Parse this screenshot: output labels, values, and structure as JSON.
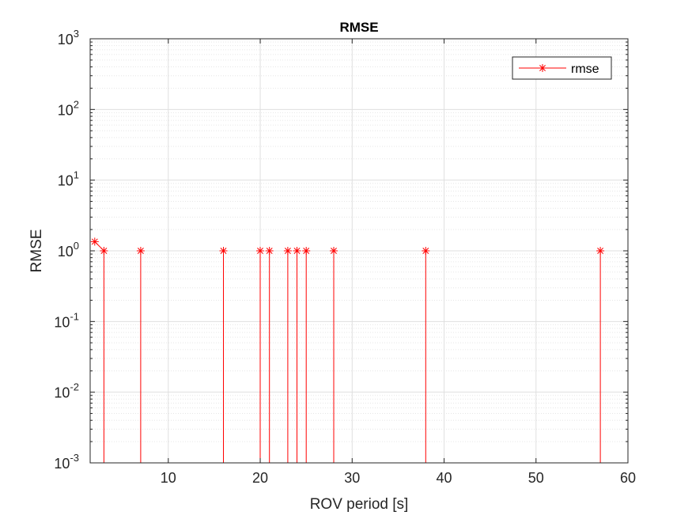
{
  "chart_data": {
    "type": "line",
    "title": "RMSE",
    "xlabel": "ROV period [s]",
    "ylabel": "RMSE",
    "yscale": "log",
    "xlim": [
      1.5,
      60
    ],
    "ylim": [
      0.001,
      1000
    ],
    "xticks": [
      10,
      20,
      30,
      40,
      50,
      60
    ],
    "xtick_labels": [
      "10",
      "20",
      "30",
      "40",
      "50",
      "60"
    ],
    "yticks": [
      0.001,
      0.01,
      0.1,
      1,
      10,
      100,
      1000
    ],
    "ytick_labels": [
      {
        "base": "10",
        "exp": "-3"
      },
      {
        "base": "10",
        "exp": "-2"
      },
      {
        "base": "10",
        "exp": "-1"
      },
      {
        "base": "10",
        "exp": "0"
      },
      {
        "base": "10",
        "exp": "1"
      },
      {
        "base": "10",
        "exp": "2"
      },
      {
        "base": "10",
        "exp": "3"
      }
    ],
    "grid": true,
    "minor_grid": true,
    "legend_position": "top-right",
    "series": [
      {
        "name": "rmse",
        "color": "#ff0000",
        "marker": "asterisk",
        "points": [
          {
            "x": 2,
            "y": 1.35
          },
          {
            "x": 3,
            "y": 1.0
          },
          {
            "x": 3,
            "y": 0
          },
          {
            "x": 7,
            "y": 0
          },
          {
            "x": 7,
            "y": 1.0
          },
          {
            "x": 7,
            "y": 0
          },
          {
            "x": 16,
            "y": 0
          },
          {
            "x": 16,
            "y": 1.0
          },
          {
            "x": 16,
            "y": 0
          },
          {
            "x": 20,
            "y": 0
          },
          {
            "x": 20,
            "y": 1.0
          },
          {
            "x": 20,
            "y": 0
          },
          {
            "x": 21,
            "y": 0
          },
          {
            "x": 21,
            "y": 1.0
          },
          {
            "x": 21,
            "y": 0
          },
          {
            "x": 23,
            "y": 0
          },
          {
            "x": 23,
            "y": 1.0
          },
          {
            "x": 23,
            "y": 0
          },
          {
            "x": 24,
            "y": 0
          },
          {
            "x": 24,
            "y": 1.0
          },
          {
            "x": 24,
            "y": 0
          },
          {
            "x": 25,
            "y": 0
          },
          {
            "x": 25,
            "y": 1.0
          },
          {
            "x": 25,
            "y": 0
          },
          {
            "x": 28,
            "y": 0
          },
          {
            "x": 28,
            "y": 1.0
          },
          {
            "x": 28,
            "y": 0
          },
          {
            "x": 38,
            "y": 0
          },
          {
            "x": 38,
            "y": 1.0
          },
          {
            "x": 38,
            "y": 0
          },
          {
            "x": 57,
            "y": 0
          },
          {
            "x": 57,
            "y": 1.0
          }
        ]
      }
    ]
  }
}
